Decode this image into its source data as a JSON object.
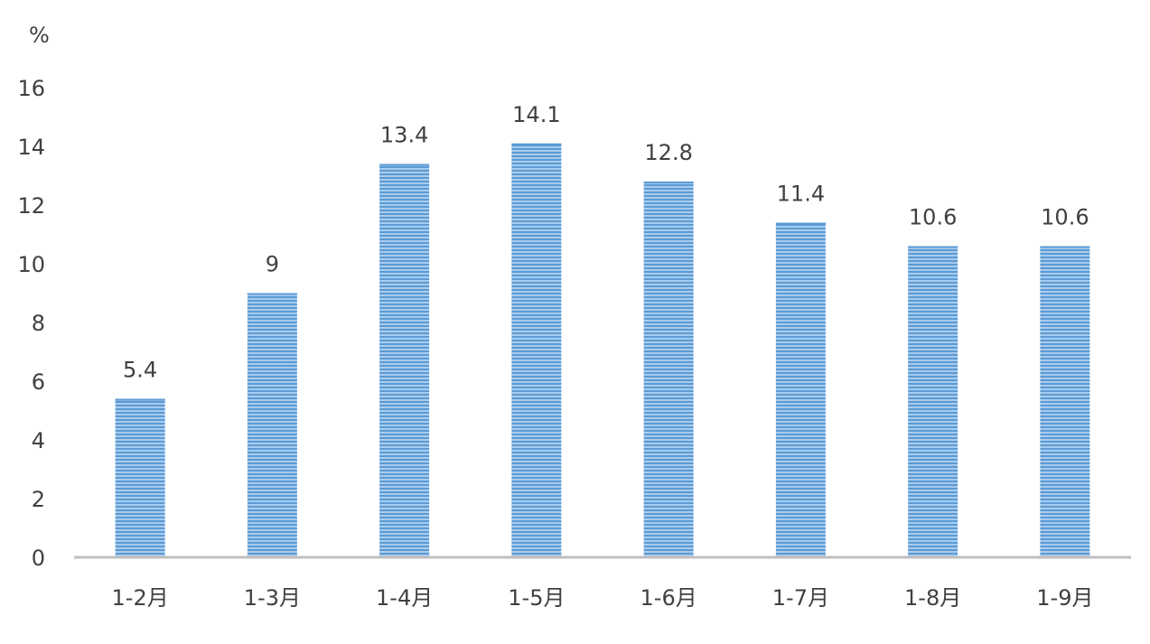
{
  "chart_data": {
    "type": "bar",
    "unit": "%",
    "categories": [
      "1-2月",
      "1-3月",
      "1-4月",
      "1-5月",
      "1-6月",
      "1-7月",
      "1-8月",
      "1-9月"
    ],
    "values": [
      5.4,
      9,
      13.4,
      14.1,
      12.8,
      11.4,
      10.6,
      10.6
    ],
    "data_labels": [
      "5.4",
      "9",
      "13.4",
      "14.1",
      "12.8",
      "11.4",
      "10.6",
      "10.6"
    ],
    "yticks": [
      "0",
      "2",
      "4",
      "6",
      "8",
      "10",
      "12",
      "14",
      "16"
    ],
    "ylim": [
      0,
      16
    ],
    "grid": false,
    "legend": "none",
    "bar_color": "#5b9bd5",
    "bar_stripe_color": "#a9cbed",
    "axis_color": "#bfbfbf"
  }
}
